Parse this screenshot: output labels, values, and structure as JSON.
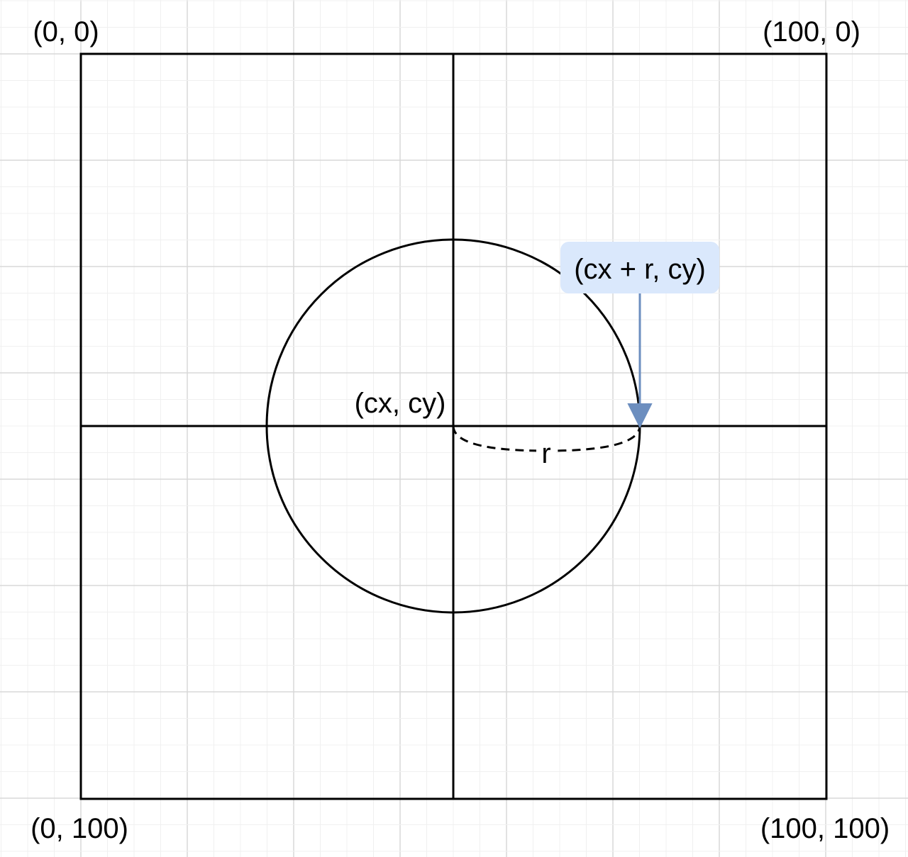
{
  "labels": {
    "top_left": "(0, 0)",
    "top_right": "(100, 0)",
    "bottom_left": "(0, 100)",
    "bottom_right": "(100, 100)",
    "center": "(cx, cy)",
    "radius": "r",
    "edge_point": "(cx + r, cy)"
  },
  "colors": {
    "background": "#ffffff",
    "grid_minor": "#f0f0f0",
    "grid_major": "#d8d8d8",
    "stroke": "#000000",
    "callout_fill": "#dae8fc",
    "arrow": "#6c8ebf"
  }
}
